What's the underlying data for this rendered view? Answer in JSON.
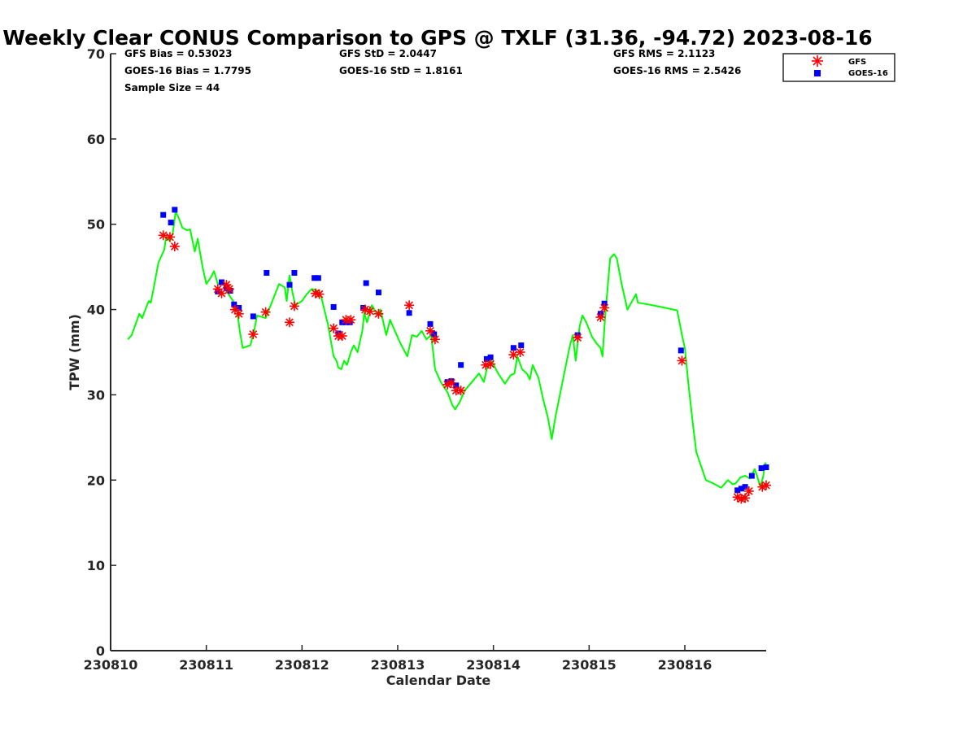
{
  "chart_data": {
    "type": "scatter",
    "title": "Weekly Clear CONUS Comparison to GPS @ TXLF (31.36, -94.72) 2023-08-16",
    "xlabel": "Calendar Date",
    "ylabel": "TPW (mm)",
    "xlim": [
      0,
      6.85
    ],
    "ylim": [
      0,
      70
    ],
    "x_ticks": [
      {
        "value": 0,
        "label": "230810"
      },
      {
        "value": 1,
        "label": "230811"
      },
      {
        "value": 2,
        "label": "230812"
      },
      {
        "value": 3,
        "label": "230813"
      },
      {
        "value": 4,
        "label": "230814"
      },
      {
        "value": 5,
        "label": "230815"
      },
      {
        "value": 6,
        "label": "230816"
      }
    ],
    "y_ticks": [
      0,
      10,
      20,
      30,
      40,
      50,
      60,
      70
    ],
    "grid": false,
    "legend": "top-right",
    "stats": [
      {
        "key": "gfs-bias",
        "text": "GFS Bias = 0.53023"
      },
      {
        "key": "goes-bias",
        "text": "GOES-16 Bias = 1.7795"
      },
      {
        "key": "sample-size",
        "text": "Sample Size = 44"
      },
      {
        "key": "gfs-std",
        "text": "GFS StD = 2.0447"
      },
      {
        "key": "goes-std",
        "text": "GOES-16 StD = 1.8161"
      },
      {
        "key": "gfs-rms",
        "text": "GFS RMS = 2.1123"
      },
      {
        "key": "goes-rms",
        "text": "GOES-16 RMS = 2.5426"
      }
    ],
    "series": [
      {
        "name": "GFS",
        "style": "asterisk",
        "color": "#ff0000",
        "points": [
          [
            0.55,
            48.7
          ],
          [
            0.62,
            48.5
          ],
          [
            0.67,
            47.4
          ],
          [
            1.12,
            42.4
          ],
          [
            1.16,
            41.9
          ],
          [
            1.21,
            42.9
          ],
          [
            1.24,
            42.4
          ],
          [
            1.3,
            40.0
          ],
          [
            1.34,
            39.5
          ],
          [
            1.49,
            37.1
          ],
          [
            1.62,
            39.7
          ],
          [
            1.87,
            38.5
          ],
          [
            1.92,
            40.4
          ],
          [
            2.14,
            41.9
          ],
          [
            2.18,
            41.8
          ],
          [
            2.33,
            37.8
          ],
          [
            2.38,
            36.9
          ],
          [
            2.42,
            36.9
          ],
          [
            2.46,
            38.8
          ],
          [
            2.51,
            38.8
          ],
          [
            2.66,
            40.0
          ],
          [
            2.71,
            39.8
          ],
          [
            2.8,
            39.5
          ],
          [
            3.12,
            40.5
          ],
          [
            3.34,
            37.5
          ],
          [
            3.39,
            36.5
          ],
          [
            3.52,
            31.2
          ],
          [
            3.56,
            31.4
          ],
          [
            3.61,
            30.5
          ],
          [
            3.66,
            30.5
          ],
          [
            3.92,
            33.5
          ],
          [
            3.97,
            33.6
          ],
          [
            4.21,
            34.7
          ],
          [
            4.28,
            35.0
          ],
          [
            4.88,
            36.7
          ],
          [
            5.12,
            39.1
          ],
          [
            5.16,
            40.2
          ],
          [
            5.97,
            34.0
          ],
          [
            6.55,
            18.0
          ],
          [
            6.59,
            17.8
          ],
          [
            6.63,
            17.9
          ],
          [
            6.67,
            18.7
          ],
          [
            6.81,
            19.2
          ],
          [
            6.85,
            19.4
          ]
        ]
      },
      {
        "name": "GOES-16",
        "style": "square",
        "color": "#0000ff",
        "points": [
          [
            0.55,
            51.1
          ],
          [
            0.63,
            50.2
          ],
          [
            0.67,
            51.7
          ],
          [
            1.12,
            42.1
          ],
          [
            1.16,
            43.2
          ],
          [
            1.21,
            42.5
          ],
          [
            1.25,
            42.2
          ],
          [
            1.29,
            40.6
          ],
          [
            1.34,
            40.2
          ],
          [
            1.49,
            39.2
          ],
          [
            1.63,
            44.3
          ],
          [
            1.87,
            42.9
          ],
          [
            1.92,
            44.3
          ],
          [
            2.13,
            43.7
          ],
          [
            2.17,
            43.7
          ],
          [
            2.33,
            40.3
          ],
          [
            2.38,
            37.2
          ],
          [
            2.42,
            38.5
          ],
          [
            2.46,
            38.5
          ],
          [
            2.5,
            38.5
          ],
          [
            2.64,
            40.2
          ],
          [
            2.67,
            43.1
          ],
          [
            2.8,
            42.0
          ],
          [
            3.12,
            39.6
          ],
          [
            3.34,
            38.3
          ],
          [
            3.38,
            37.1
          ],
          [
            3.52,
            31.5
          ],
          [
            3.56,
            31.6
          ],
          [
            3.61,
            31.1
          ],
          [
            3.66,
            33.5
          ],
          [
            3.93,
            34.2
          ],
          [
            3.97,
            34.4
          ],
          [
            4.21,
            35.5
          ],
          [
            4.29,
            35.8
          ],
          [
            4.88,
            37.0
          ],
          [
            5.12,
            39.5
          ],
          [
            5.16,
            40.7
          ],
          [
            5.96,
            35.2
          ],
          [
            6.55,
            18.8
          ],
          [
            6.59,
            19.0
          ],
          [
            6.63,
            19.2
          ],
          [
            6.7,
            20.5
          ],
          [
            6.8,
            21.4
          ],
          [
            6.85,
            21.5
          ]
        ]
      },
      {
        "name": "GPS",
        "style": "line",
        "color": "#00ff00",
        "points": [
          [
            0.18,
            36.5
          ],
          [
            0.22,
            37.0
          ],
          [
            0.3,
            39.5
          ],
          [
            0.33,
            39.0
          ],
          [
            0.38,
            40.5
          ],
          [
            0.4,
            41.0
          ],
          [
            0.42,
            40.8
          ],
          [
            0.45,
            42.5
          ],
          [
            0.5,
            45.5
          ],
          [
            0.56,
            47.0
          ],
          [
            0.58,
            48.5
          ],
          [
            0.62,
            48.0
          ],
          [
            0.65,
            49.0
          ],
          [
            0.68,
            51.5
          ],
          [
            0.71,
            50.8
          ],
          [
            0.75,
            49.6
          ],
          [
            0.8,
            49.3
          ],
          [
            0.83,
            49.4
          ],
          [
            0.88,
            46.8
          ],
          [
            0.91,
            48.3
          ],
          [
            0.96,
            45.0
          ],
          [
            1.0,
            43.0
          ],
          [
            1.05,
            43.8
          ],
          [
            1.08,
            44.5
          ],
          [
            1.12,
            43.0
          ],
          [
            1.17,
            43.3
          ],
          [
            1.22,
            42.0
          ],
          [
            1.28,
            41.0
          ],
          [
            1.32,
            40.0
          ],
          [
            1.35,
            37.5
          ],
          [
            1.38,
            35.5
          ],
          [
            1.46,
            35.8
          ],
          [
            1.5,
            37.5
          ],
          [
            1.53,
            39.3
          ],
          [
            1.62,
            39.0
          ],
          [
            1.69,
            41.0
          ],
          [
            1.76,
            43.0
          ],
          [
            1.82,
            42.6
          ],
          [
            1.84,
            41.0
          ],
          [
            1.87,
            44.0
          ],
          [
            1.9,
            42.0
          ],
          [
            1.93,
            40.5
          ],
          [
            2.0,
            41.0
          ],
          [
            2.05,
            41.8
          ],
          [
            2.1,
            42.4
          ],
          [
            2.15,
            42.3
          ],
          [
            2.2,
            41.5
          ],
          [
            2.27,
            38.3
          ],
          [
            2.33,
            34.5
          ],
          [
            2.36,
            34.0
          ],
          [
            2.38,
            33.2
          ],
          [
            2.41,
            33.0
          ],
          [
            2.44,
            34.0
          ],
          [
            2.47,
            33.5
          ],
          [
            2.51,
            35.0
          ],
          [
            2.54,
            35.8
          ],
          [
            2.58,
            35.0
          ],
          [
            2.63,
            37.5
          ],
          [
            2.65,
            39.6
          ],
          [
            2.68,
            38.5
          ],
          [
            2.73,
            40.5
          ],
          [
            2.78,
            39.5
          ],
          [
            2.82,
            40.0
          ],
          [
            2.86,
            38.0
          ],
          [
            2.88,
            37.0
          ],
          [
            2.92,
            38.8
          ],
          [
            2.97,
            37.5
          ],
          [
            3.03,
            36.0
          ],
          [
            3.1,
            34.5
          ],
          [
            3.15,
            37.0
          ],
          [
            3.2,
            36.8
          ],
          [
            3.25,
            37.5
          ],
          [
            3.3,
            36.5
          ],
          [
            3.35,
            37.0
          ],
          [
            3.39,
            33.0
          ],
          [
            3.45,
            31.5
          ],
          [
            3.52,
            30.3
          ],
          [
            3.57,
            28.8
          ],
          [
            3.6,
            28.3
          ],
          [
            3.65,
            29.2
          ],
          [
            3.7,
            30.5
          ],
          [
            3.85,
            32.5
          ],
          [
            3.9,
            31.5
          ],
          [
            3.93,
            33.0
          ],
          [
            3.98,
            34.0
          ],
          [
            4.05,
            32.5
          ],
          [
            4.12,
            31.3
          ],
          [
            4.18,
            32.3
          ],
          [
            4.22,
            32.5
          ],
          [
            4.25,
            34.5
          ],
          [
            4.3,
            33.0
          ],
          [
            4.35,
            32.5
          ],
          [
            4.38,
            31.8
          ],
          [
            4.41,
            33.5
          ],
          [
            4.47,
            32.0
          ],
          [
            4.52,
            29.5
          ],
          [
            4.57,
            27.3
          ],
          [
            4.61,
            24.8
          ],
          [
            4.65,
            27.5
          ],
          [
            4.74,
            32.5
          ],
          [
            4.8,
            35.8
          ],
          [
            4.83,
            37.0
          ],
          [
            4.86,
            34.0
          ],
          [
            4.9,
            38.0
          ],
          [
            4.93,
            39.3
          ],
          [
            4.97,
            38.5
          ],
          [
            5.03,
            36.8
          ],
          [
            5.08,
            36.0
          ],
          [
            5.12,
            35.5
          ],
          [
            5.14,
            34.5
          ],
          [
            5.17,
            39.5
          ],
          [
            5.22,
            46.0
          ],
          [
            5.26,
            46.5
          ],
          [
            5.29,
            46.0
          ],
          [
            5.34,
            43.0
          ],
          [
            5.4,
            40.0
          ],
          [
            5.45,
            41.0
          ],
          [
            5.49,
            41.8
          ],
          [
            5.51,
            40.8
          ],
          [
            5.62,
            40.6
          ],
          [
            5.75,
            40.3
          ],
          [
            5.92,
            39.9
          ],
          [
            5.97,
            37.0
          ],
          [
            6.0,
            35.5
          ],
          [
            6.04,
            31.0
          ],
          [
            6.09,
            26.0
          ],
          [
            6.12,
            23.3
          ],
          [
            6.22,
            20.0
          ],
          [
            6.3,
            19.6
          ],
          [
            6.38,
            19.1
          ],
          [
            6.45,
            20.0
          ],
          [
            6.5,
            19.5
          ],
          [
            6.53,
            19.6
          ],
          [
            6.58,
            20.3
          ],
          [
            6.63,
            20.5
          ],
          [
            6.68,
            20.2
          ],
          [
            6.73,
            21.3
          ],
          [
            6.76,
            20.3
          ],
          [
            6.79,
            19.2
          ],
          [
            6.82,
            20.5
          ],
          [
            6.84,
            22.0
          ],
          [
            6.86,
            21.5
          ]
        ]
      }
    ]
  }
}
